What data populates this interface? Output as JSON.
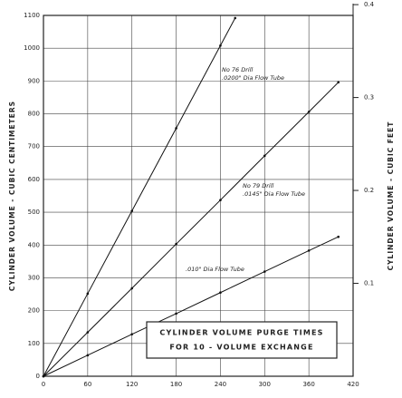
{
  "chart_data": {
    "type": "line",
    "ylabel": "CYLINDER VOLUME - CUBIC CENTIMETERS",
    "y2label": "CYLINDER VOLUME - CUBIC FEET",
    "box_text": [
      "CYLINDER VOLUME PURGE TIMES",
      "FOR 10 - VOLUME EXCHANGE"
    ],
    "xlim": [
      0,
      420
    ],
    "xticks": [
      0,
      60,
      120,
      180,
      240,
      300,
      360,
      420
    ],
    "ylim": [
      0,
      1100
    ],
    "yticks": [
      0,
      100,
      200,
      300,
      400,
      500,
      600,
      700,
      800,
      900,
      1000,
      1100
    ],
    "y2lim": [
      0,
      0.3884
    ],
    "y2ticks": [
      0.1,
      0.2,
      0.3,
      0.4
    ],
    "grid": true,
    "series": [
      {
        "label_lines": [
          "No 76 Drill",
          ".0200\" Dia Flow Tube"
        ],
        "color": "#111",
        "x": [
          0,
          60,
          120,
          180,
          240,
          260
        ],
        "values": [
          0,
          252,
          504,
          756,
          1008,
          1092
        ]
      },
      {
        "label_lines": [
          "No 79 Drill",
          ".0145\" Dia Flow Tube"
        ],
        "color": "#111",
        "x": [
          0,
          60,
          120,
          180,
          240,
          300,
          360,
          400
        ],
        "values": [
          0,
          134,
          268,
          403,
          537,
          672,
          806,
          896
        ]
      },
      {
        "label_lines": [
          ".010\" Dia Flow Tube"
        ],
        "color": "#111",
        "x": [
          0,
          60,
          120,
          180,
          240,
          300,
          360,
          400
        ],
        "values": [
          0,
          64,
          128,
          191,
          255,
          319,
          383,
          425
        ]
      }
    ]
  }
}
